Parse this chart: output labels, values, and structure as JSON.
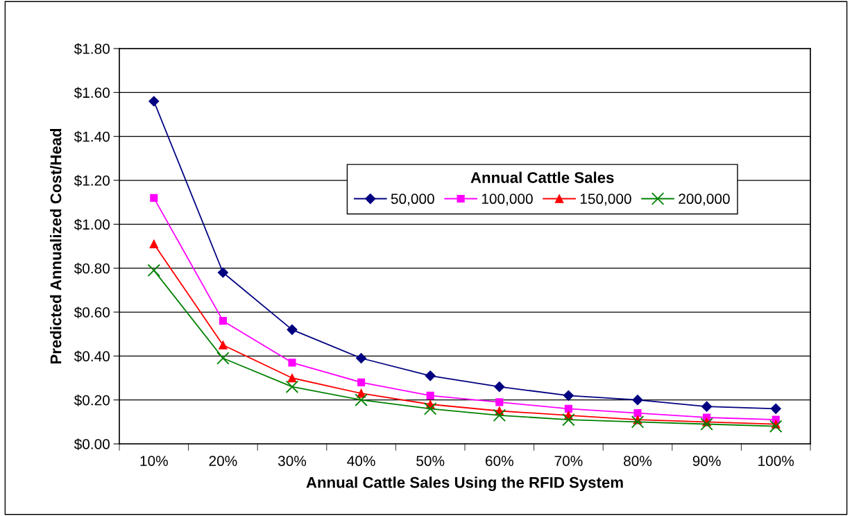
{
  "chart_data": {
    "type": "line",
    "xlabel": "Annual Cattle Sales Using the RFID System",
    "ylabel": "Predicted Annualized Cost/Head",
    "legend_title": "Annual Cattle Sales",
    "categories": [
      "10%",
      "20%",
      "30%",
      "40%",
      "50%",
      "60%",
      "70%",
      "80%",
      "90%",
      "100%"
    ],
    "series": [
      {
        "name": "50,000",
        "color": "#000080",
        "marker": "diamond",
        "values": [
          1.56,
          0.78,
          0.52,
          0.39,
          0.31,
          0.26,
          0.22,
          0.2,
          0.17,
          0.16
        ]
      },
      {
        "name": "100,000",
        "color": "#ff00ff",
        "marker": "square",
        "values": [
          1.12,
          0.56,
          0.37,
          0.28,
          0.22,
          0.19,
          0.16,
          0.14,
          0.12,
          0.11
        ]
      },
      {
        "name": "150,000",
        "color": "#ff0000",
        "marker": "triangle",
        "values": [
          0.91,
          0.45,
          0.3,
          0.23,
          0.18,
          0.15,
          0.13,
          0.11,
          0.1,
          0.09
        ]
      },
      {
        "name": "200,000",
        "color": "#008000",
        "marker": "cross",
        "values": [
          0.79,
          0.39,
          0.26,
          0.2,
          0.16,
          0.13,
          0.11,
          0.1,
          0.09,
          0.08
        ]
      }
    ],
    "ylim": [
      0,
      1.8
    ],
    "yticks": [
      {
        "value": 0,
        "label": "$0.00"
      },
      {
        "value": 0.2,
        "label": "$0.20"
      },
      {
        "value": 0.4,
        "label": "$0.40"
      },
      {
        "value": 0.6,
        "label": "$0.60"
      },
      {
        "value": 0.8,
        "label": "$0.80"
      },
      {
        "value": 1.0,
        "label": "$1.00"
      },
      {
        "value": 1.2,
        "label": "$1.20"
      },
      {
        "value": 1.4,
        "label": "$1.40"
      },
      {
        "value": 1.6,
        "label": "$1.60"
      },
      {
        "value": 1.8,
        "label": "$1.80"
      }
    ],
    "grid": "y",
    "legend": "top right",
    "line_style": "solid"
  }
}
